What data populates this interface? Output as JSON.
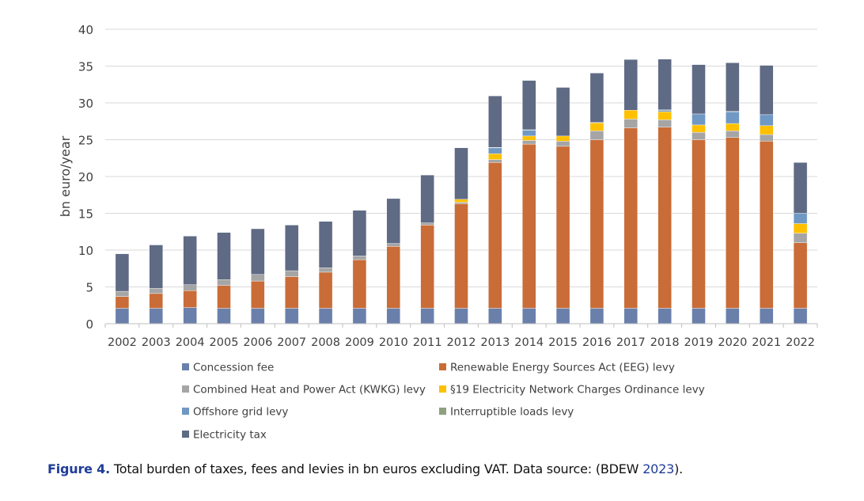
{
  "chart_data": {
    "type": "bar",
    "stacked": true,
    "title": "",
    "xlabel": "",
    "ylabel": "bn euro/year",
    "ylim": [
      0,
      40
    ],
    "yticks": [
      0,
      5,
      10,
      15,
      20,
      25,
      30,
      35,
      40
    ],
    "grid": true,
    "legend_placement": "bottom",
    "categories": [
      "2002",
      "2003",
      "2004",
      "2005",
      "2006",
      "2007",
      "2008",
      "2009",
      "2010",
      "2011",
      "2012",
      "2013",
      "2014",
      "2015",
      "2016",
      "2017",
      "2018",
      "2019",
      "2020",
      "2021",
      "2022"
    ],
    "series": [
      {
        "name": "Concession fee",
        "color": "#6a80ab",
        "values": [
          2.1,
          2.1,
          2.2,
          2.1,
          2.1,
          2.1,
          2.1,
          2.1,
          2.1,
          2.1,
          2.1,
          2.1,
          2.1,
          2.1,
          2.1,
          2.1,
          2.1,
          2.1,
          2.1,
          2.1,
          2.1
        ]
      },
      {
        "name": "Renewable Energy Sources Act (EEG) levy",
        "color": "#c96c37",
        "values": [
          1.6,
          2.0,
          2.3,
          3.1,
          3.7,
          4.3,
          4.9,
          6.6,
          8.4,
          11.3,
          14.2,
          19.8,
          22.3,
          22.0,
          22.9,
          24.5,
          24.6,
          22.9,
          23.2,
          22.7,
          8.9
        ]
      },
      {
        "name": "Combined Heat and Power Act (KWKG) levy",
        "color": "#a5a5a5",
        "values": [
          0.7,
          0.7,
          0.8,
          0.8,
          0.9,
          0.8,
          0.6,
          0.5,
          0.4,
          0.3,
          0.2,
          0.4,
          0.5,
          0.7,
          1.2,
          1.2,
          1.0,
          1.0,
          0.9,
          0.9,
          1.3
        ]
      },
      {
        "name": "§19 Electricity Network Charges Ordinance levy",
        "color": "#ffc000",
        "values": [
          0,
          0,
          0,
          0,
          0,
          0,
          0,
          0,
          0,
          0,
          0.4,
          0.8,
          0.6,
          0.7,
          1.1,
          1.2,
          1.1,
          1.0,
          1.0,
          1.2,
          1.3
        ]
      },
      {
        "name": "Offshore grid levy",
        "color": "#7098c4",
        "values": [
          0,
          0,
          0,
          0,
          0,
          0,
          0,
          0,
          0,
          0,
          0,
          0.8,
          0.8,
          0,
          0,
          0,
          0.2,
          1.5,
          1.6,
          1.5,
          1.4
        ]
      },
      {
        "name": "Interruptible loads levy",
        "color": "#8fa07f",
        "values": [
          0,
          0,
          0,
          0,
          0,
          0,
          0,
          0,
          0,
          0,
          0,
          0.05,
          0.05,
          0,
          0.05,
          0,
          0.05,
          0,
          0.05,
          0,
          0
        ]
      },
      {
        "name": "Electricity tax",
        "color": "#5f6a84",
        "values": [
          5.1,
          5.9,
          6.6,
          6.4,
          6.2,
          6.2,
          6.3,
          6.2,
          6.1,
          6.5,
          7.0,
          7.0,
          6.7,
          6.6,
          6.7,
          6.9,
          6.9,
          6.7,
          6.6,
          6.7,
          6.9
        ]
      }
    ]
  },
  "caption": {
    "figure_label": "Figure 4.",
    "text": " Total burden of taxes, fees and levies in bn euros excluding VAT. Data source: (BDEW ",
    "ref_year": "2023",
    "end": ")."
  }
}
